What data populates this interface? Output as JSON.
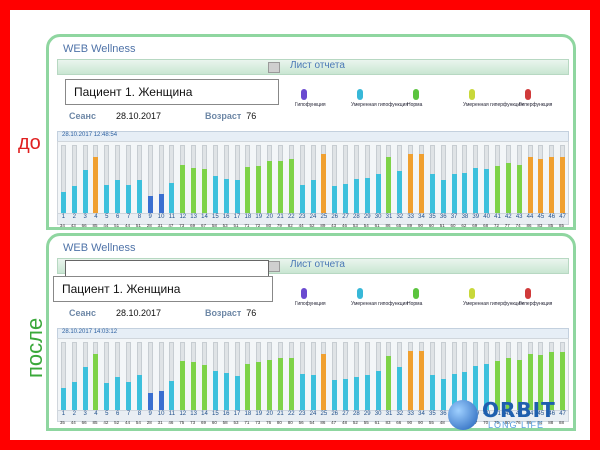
{
  "labels": {
    "before": "до",
    "after": "после"
  },
  "panels": [
    {
      "app_title": "WEB Wellness",
      "report_title": "Лист отчета",
      "patient": "Пациент 1. Женщина",
      "session_label": "Сеанс",
      "session_date": "28.10.2017",
      "age_label": "Возраст",
      "age": "76",
      "chart_datetime": "28.10.2017   12:48:54",
      "legend": [
        {
          "label": "Гипофункция",
          "color": "#6a4ad0"
        },
        {
          "label": "Умеренная гипофункция",
          "color": "#38b8d8"
        },
        {
          "label": "Норма",
          "color": "#5bc43e"
        },
        {
          "label": "Умеренная гиперфункция",
          "color": "#c8d83a"
        },
        {
          "label": "Гиперфункция",
          "color": "#d03a3a"
        }
      ]
    },
    {
      "app_title": "WEB Wellness",
      "report_title": "Лист отчета",
      "patient": "Пациент 1. Женщина",
      "session_label": "Сеанс",
      "session_date": "28.10.2017",
      "age_label": "Возраст",
      "age": "76",
      "chart_datetime": "28.10.2017   14:03:12",
      "legend": [
        {
          "label": "Гипофункция",
          "color": "#6a4ad0"
        },
        {
          "label": "Умеренная гипофункция",
          "color": "#38b8d8"
        },
        {
          "label": "Норма",
          "color": "#5bc43e"
        },
        {
          "label": "Умеренная гиперфункция",
          "color": "#c8d83a"
        },
        {
          "label": "Гиперфункция",
          "color": "#d03a3a"
        }
      ]
    }
  ],
  "chart_data": [
    {
      "type": "bar",
      "categories": [
        "1",
        "2",
        "3",
        "4",
        "5",
        "6",
        "7",
        "8",
        "9",
        "10",
        "11",
        "12",
        "13",
        "14",
        "15",
        "16",
        "17",
        "18",
        "19",
        "20",
        "21",
        "22",
        "23",
        "24",
        "25",
        "26",
        "27",
        "28",
        "29",
        "30",
        "31",
        "32",
        "33",
        "34",
        "35",
        "36",
        "37",
        "38",
        "39",
        "40",
        "41",
        "42",
        "43",
        "44",
        "45",
        "46",
        "47"
      ],
      "values": [
        34,
        43,
        66,
        85,
        44,
        51,
        44,
        51,
        28,
        31,
        47,
        73,
        69,
        67,
        58,
        53,
        51,
        71,
        72,
        80,
        79,
        82,
        44,
        52,
        89,
        43,
        46,
        53,
        54,
        61,
        86,
        65,
        89,
        90,
        60,
        51,
        60,
        62,
        69,
        68,
        72,
        77,
        74,
        86,
        83,
        85,
        85
      ],
      "colors": [
        "c",
        "c",
        "c",
        "o",
        "c",
        "c",
        "c",
        "c",
        "b",
        "b",
        "c",
        "g",
        "g",
        "g",
        "c",
        "c",
        "c",
        "g",
        "g",
        "g",
        "g",
        "g",
        "c",
        "c",
        "o",
        "c",
        "c",
        "c",
        "c",
        "c",
        "g",
        "c",
        "o",
        "o",
        "c",
        "c",
        "c",
        "c",
        "c",
        "c",
        "g",
        "g",
        "g",
        "o",
        "o",
        "o",
        "o"
      ],
      "ylim": [
        0,
        100
      ]
    },
    {
      "type": "bar",
      "categories": [
        "1",
        "2",
        "3",
        "4",
        "5",
        "6",
        "7",
        "8",
        "9",
        "10",
        "11",
        "12",
        "13",
        "14",
        "15",
        "16",
        "17",
        "18",
        "19",
        "20",
        "21",
        "22",
        "23",
        "24",
        "25",
        "26",
        "27",
        "28",
        "29",
        "30",
        "31",
        "32",
        "33",
        "34",
        "35",
        "36",
        "37",
        "38",
        "39",
        "40",
        "41",
        "42",
        "43",
        "44",
        "45",
        "46",
        "47"
      ],
      "values": [
        35,
        44,
        66,
        85,
        42,
        52,
        44,
        54,
        28,
        31,
        46,
        75,
        73,
        69,
        60,
        58,
        53,
        71,
        73,
        76,
        80,
        80,
        56,
        54,
        86,
        47,
        48,
        52,
        55,
        61,
        83,
        66,
        90,
        90,
        55,
        48,
        56,
        59,
        67,
        70,
        75,
        80,
        76,
        86,
        84,
        88,
        88
      ],
      "colors": [
        "c",
        "c",
        "c",
        "g",
        "c",
        "c",
        "c",
        "c",
        "b",
        "b",
        "c",
        "g",
        "g",
        "g",
        "c",
        "c",
        "c",
        "g",
        "g",
        "g",
        "g",
        "g",
        "c",
        "c",
        "o",
        "c",
        "c",
        "c",
        "c",
        "c",
        "g",
        "c",
        "o",
        "o",
        "c",
        "c",
        "c",
        "c",
        "c",
        "c",
        "g",
        "g",
        "g",
        "g",
        "g",
        "g",
        "g"
      ],
      "ylim": [
        0,
        100
      ]
    }
  ],
  "palette": {
    "c": "#3cc0dc",
    "g": "#7ed348",
    "o": "#f0a030",
    "b": "#3a6fd0"
  },
  "logo": {
    "name": "ORBIT",
    "tagline": "LONG LIFE"
  }
}
